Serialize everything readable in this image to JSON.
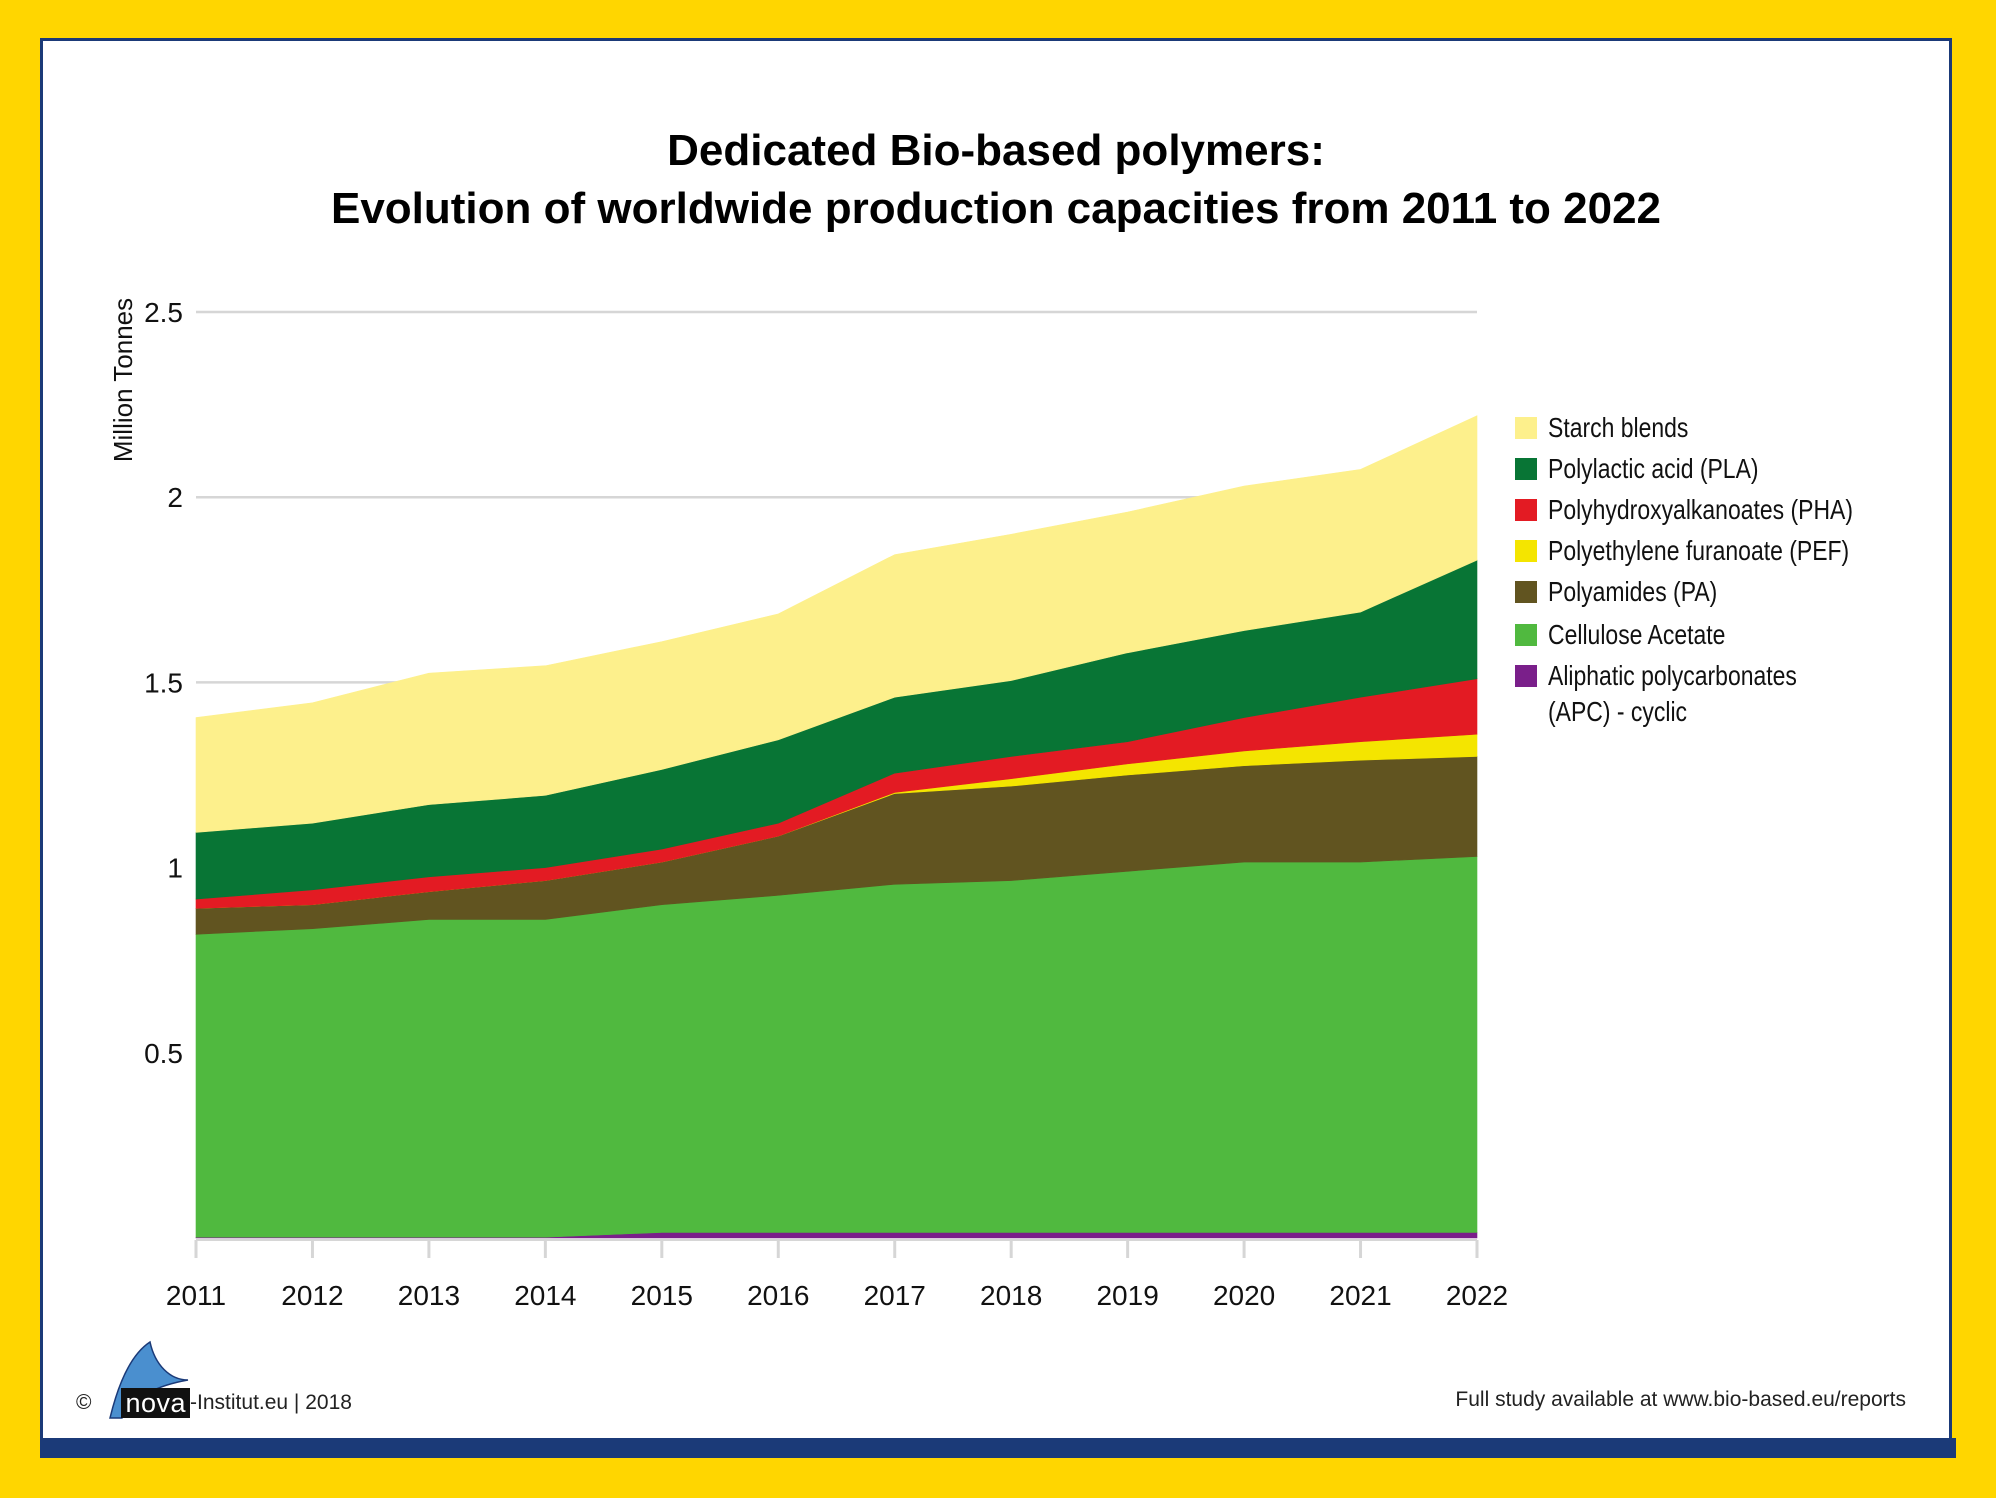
{
  "chart_data": {
    "type": "area",
    "stacked": true,
    "title": "Dedicated Bio-based polymers:",
    "subtitle": "Evolution of worldwide production capacities from 2011 to 2022",
    "xlabel": "",
    "ylabel": "Million Tonnes",
    "ylim": [
      0,
      2.5
    ],
    "yticks": [
      0.5,
      1,
      1.5,
      2,
      2.5
    ],
    "ytick_labels": [
      "0.5",
      "1",
      "1.5",
      "2",
      "2.5"
    ],
    "grid": true,
    "legend_position": "right",
    "categories": [
      "2011",
      "2012",
      "2013",
      "2014",
      "2015",
      "2016",
      "2017",
      "2018",
      "2019",
      "2020",
      "2021",
      "2022"
    ],
    "series": [
      {
        "name": "Aliphatic polycarbonates (APC) - cyclic",
        "color": "#7a1f8a",
        "values": [
          0.002,
          0.002,
          0.002,
          0.002,
          0.015,
          0.015,
          0.015,
          0.015,
          0.015,
          0.015,
          0.015,
          0.015
        ]
      },
      {
        "name": "Cellulose Acetate",
        "color": "#50b93f",
        "values": [
          0.818,
          0.833,
          0.858,
          0.858,
          0.885,
          0.91,
          0.94,
          0.95,
          0.975,
          1.0,
          1.0,
          1.015
        ]
      },
      {
        "name": "Polyamides (PA)",
        "color": "#615420",
        "values": [
          0.07,
          0.065,
          0.075,
          0.105,
          0.115,
          0.16,
          0.245,
          0.255,
          0.26,
          0.26,
          0.275,
          0.27
        ]
      },
      {
        "name": "Polyethylene furanoate (PEF)",
        "color": "#f4e500",
        "values": [
          0,
          0,
          0,
          0,
          0,
          0,
          0.003,
          0.02,
          0.03,
          0.04,
          0.05,
          0.06
        ]
      },
      {
        "name": "Polyhydroxyalkanoates (PHA)",
        "color": "#e31b23",
        "values": [
          0.025,
          0.04,
          0.04,
          0.035,
          0.035,
          0.035,
          0.052,
          0.06,
          0.06,
          0.09,
          0.12,
          0.15
        ]
      },
      {
        "name": "Polylactic acid (PLA)",
        "color": "#087535",
        "values": [
          0.18,
          0.18,
          0.195,
          0.195,
          0.215,
          0.225,
          0.205,
          0.205,
          0.24,
          0.235,
          0.23,
          0.32
        ]
      },
      {
        "name": "Starch blends",
        "color": "#fdf08c",
        "values": [
          0.31,
          0.325,
          0.355,
          0.35,
          0.345,
          0.34,
          0.385,
          0.395,
          0.38,
          0.39,
          0.385,
          0.39
        ]
      }
    ]
  },
  "legend": {
    "items": [
      {
        "label": "Starch blends",
        "color": "#fdf08c"
      },
      {
        "label": "Polylactic acid (PLA)",
        "color": "#087535"
      },
      {
        "label": "Polyhydroxyalkanoates (PHA)",
        "color": "#e31b23"
      },
      {
        "label": "Polyethylene furanoate (PEF)",
        "color": "#f4e500"
      },
      {
        "label": "Polyamides (PA)",
        "color": "#615420"
      },
      {
        "label": "Cellulose Acetate",
        "color": "#50b93f"
      },
      {
        "label": "Aliphatic polycarbonates\n(APC) - cyclic",
        "color": "#7a1f8a"
      }
    ]
  },
  "footer": {
    "copyright": "©",
    "brand": "nova",
    "brand_suffix": "-Institut.eu | 2018",
    "source": "Full study available at www.bio-based.eu/reports"
  },
  "colors": {
    "frame_yellow": "#FFD600",
    "frame_blue": "#1b3a78",
    "logo_blue": "#4a8fcf"
  }
}
